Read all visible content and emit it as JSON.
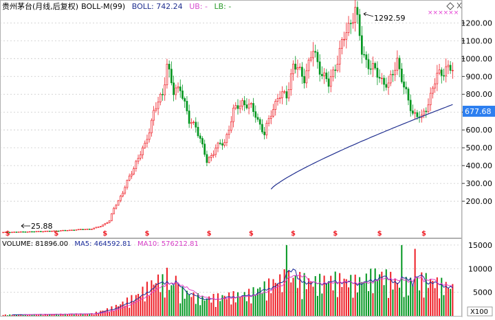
{
  "header": {
    "stock_name": "贵州茅台",
    "period_label": "(月线,后复权)",
    "indicator_label": "BOLL-M(99)",
    "boll_label": "BOLL: 742.24",
    "ub_label": "UB: -",
    "lb_label": "LB: -"
  },
  "volume_header": {
    "volume_label": "VOLUME: 81896.00",
    "ma5_label": "MA5: 464592.81",
    "ma10_label": "MA10: 576212.81"
  },
  "annotations": {
    "low_label": "25.88",
    "high_label": "1292.59",
    "current_price_label": "677.68",
    "dividend_marker": "$"
  },
  "price_axis": {
    "ticks": [
      "1200.00",
      "1100.00",
      "1000.00",
      "900.00",
      "800.00",
      "700.00",
      "600.00",
      "500.00",
      "400.00",
      "300.00",
      "200.00"
    ]
  },
  "volume_axis": {
    "ticks": [
      "15000",
      "10000",
      "5000"
    ],
    "unit": "X100"
  },
  "colors": {
    "up": "#ee1c24",
    "down": "#00961f",
    "boll": "#1f2e8f",
    "ma5": "#1a2b9b",
    "ma10": "#e040c8",
    "grid": "#c8c8c8",
    "price_tag_bg": "#2d7ff0",
    "dividend": "#ee1c24",
    "toolbar_x": "#e33fd2"
  },
  "chart_data": [
    {
      "type": "candlestick",
      "name": "price",
      "y_ticks": [
        200,
        300,
        400,
        500,
        600,
        700,
        800,
        900,
        1000,
        1100,
        1200
      ],
      "ylim": [
        0,
        1290
      ],
      "candles": [],
      "overlay_boll": [],
      "annotations": {
        "max": 1292.59,
        "min": 25.88,
        "last_boll": 742.24,
        "current_price": 677.68
      }
    },
    {
      "type": "bar",
      "name": "volume",
      "y_ticks": [
        5000,
        10000,
        15000
      ],
      "ylim": [
        0,
        16000
      ],
      "values": [],
      "up": [],
      "series_ma5": [],
      "series_ma10": []
    }
  ]
}
